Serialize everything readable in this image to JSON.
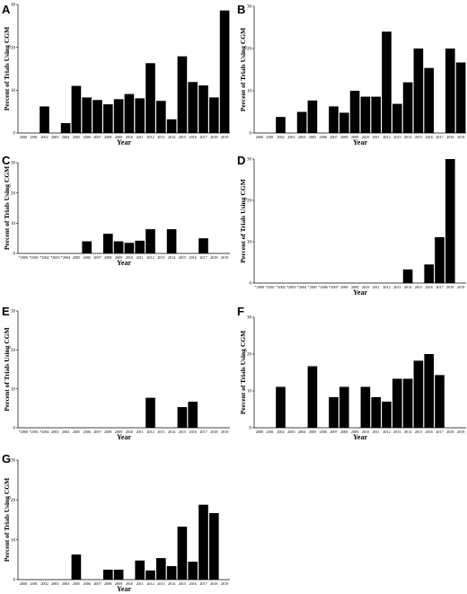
{
  "chart_data": [
    {
      "panel": "A",
      "type": "bar",
      "ylabel": "Percent of Trials Using CGM",
      "xlabel": "Year",
      "ylim": [
        0,
        30
      ],
      "yticks": [
        0,
        10,
        20,
        30
      ],
      "categories": [
        "2000",
        "2001",
        "2002",
        "2003",
        "2004",
        "2005",
        "2006",
        "2007",
        "2008",
        "2009",
        "2010",
        "2011",
        "2012",
        "2013",
        "2014",
        "2015",
        "2016",
        "2017",
        "2018",
        "2019"
      ],
      "values": [
        0,
        0,
        6.2,
        0,
        2.3,
        11,
        8.3,
        7.7,
        6.7,
        7.9,
        9.1,
        8.1,
        16.3,
        7.5,
        3.2,
        17.9,
        11.9,
        11.1,
        8.3,
        28.6
      ]
    },
    {
      "panel": "B",
      "type": "bar",
      "ylabel": "Percent of Trials Using CGM",
      "xlabel": "Year",
      "ylim": [
        0,
        30
      ],
      "yticks": [
        0,
        10,
        20,
        30
      ],
      "categories": [
        "2000",
        "2001",
        "2002",
        "2003",
        "2004",
        "2005",
        "2006",
        "2007",
        "2008",
        "2009",
        "2010",
        "2011",
        "2012",
        "2013",
        "2014",
        "2015",
        "2016",
        "2017",
        "2018",
        "2019"
      ],
      "values": [
        0,
        0,
        3.8,
        0,
        5,
        7.7,
        0,
        6.3,
        4.8,
        10,
        8.6,
        8.6,
        24,
        6.9,
        12,
        20,
        15.4,
        0,
        20,
        16.7
      ]
    },
    {
      "panel": "C",
      "type": "bar",
      "ylabel": "Percent of Trials Using CGM",
      "xlabel": "Year",
      "ylim": [
        0,
        30
      ],
      "yticks": [
        0,
        10,
        20,
        30
      ],
      "categories": [
        "*2000",
        "*2001",
        "*2002",
        "*2003",
        "*2004",
        "2005",
        "2006",
        "2007",
        "2008",
        "2009",
        "2010",
        "2011",
        "2012",
        "2013",
        "2014",
        "2015",
        "2016",
        "2017",
        "2018",
        "2019"
      ],
      "values": [
        0,
        0,
        0,
        0,
        0,
        0,
        4,
        0,
        6.5,
        4,
        3.5,
        4.2,
        8,
        0,
        8,
        0,
        0,
        5,
        0,
        0
      ]
    },
    {
      "panel": "D",
      "type": "bar",
      "ylabel": "Percent of Trials Using CGM",
      "xlabel": "Year",
      "ylim": [
        0,
        30
      ],
      "yticks": [
        0,
        10,
        20,
        30
      ],
      "categories": [
        "*2000",
        "*2001",
        "*2002",
        "*2003",
        "*2004",
        "*2005",
        "*2006",
        "*2007",
        "2008",
        "2009",
        "2010",
        "2011",
        "2012",
        "2013",
        "2014",
        "2015",
        "2016",
        "2017",
        "2018",
        "2019"
      ],
      "values": [
        0,
        0,
        0,
        0,
        0,
        0,
        0,
        0,
        0,
        0,
        0,
        0,
        0,
        0,
        3.3,
        0,
        4.5,
        11.1,
        30,
        0
      ]
    },
    {
      "panel": "E",
      "type": "bar",
      "ylabel": "Percent of Trials Using CGM",
      "xlabel": "Year",
      "ylim": [
        0,
        30
      ],
      "yticks": [
        0,
        10,
        20,
        30
      ],
      "categories": [
        "*2000",
        "*2001",
        "*2002",
        "2003",
        "2004",
        "2005",
        "2006",
        "2007",
        "2008",
        "2009",
        "2010",
        "2011",
        "2012",
        "2013",
        "2014",
        "2015",
        "2016",
        "2017",
        "2018",
        "2019"
      ],
      "values": [
        0,
        0,
        0,
        0,
        0,
        0,
        0,
        0,
        0,
        0,
        0,
        0,
        7.7,
        0,
        0,
        5.3,
        6.7,
        0,
        0,
        0
      ]
    },
    {
      "panel": "F",
      "type": "bar",
      "ylabel": "Percent of Trials Using CGM",
      "xlabel": "Year",
      "ylim": [
        0,
        30
      ],
      "yticks": [
        0,
        10,
        20,
        30
      ],
      "categories": [
        "2000",
        "2001",
        "2002",
        "2003",
        "2004",
        "2005",
        "2006",
        "2007",
        "2008",
        "2009",
        "2010",
        "2011",
        "2012",
        "2013",
        "2014",
        "2015",
        "2016",
        "2017",
        "2018",
        "2019"
      ],
      "values": [
        0,
        0,
        11.1,
        0,
        0,
        16.7,
        0,
        8.3,
        11.1,
        0,
        11.1,
        8.3,
        7.1,
        13.3,
        13.3,
        18.2,
        20,
        14.3,
        0,
        0
      ]
    },
    {
      "panel": "G",
      "type": "bar",
      "ylabel": "Percent of Trials Using CGM",
      "xlabel": "Year",
      "ylim": [
        0,
        30
      ],
      "yticks": [
        0,
        10,
        20,
        30
      ],
      "categories": [
        "2000",
        "2001",
        "2002",
        "2003",
        "2004",
        "2005",
        "2006",
        "2007",
        "2008",
        "2009",
        "2010",
        "2011",
        "2012",
        "2013",
        "2014",
        "2015",
        "2016",
        "2017",
        "2018",
        "2019"
      ],
      "values": [
        0,
        0,
        0,
        0,
        0,
        6.3,
        0,
        0,
        2.5,
        2.5,
        0,
        4.8,
        2.3,
        5.4,
        3.4,
        13.3,
        4.5,
        18.8,
        16.7,
        0
      ]
    }
  ]
}
